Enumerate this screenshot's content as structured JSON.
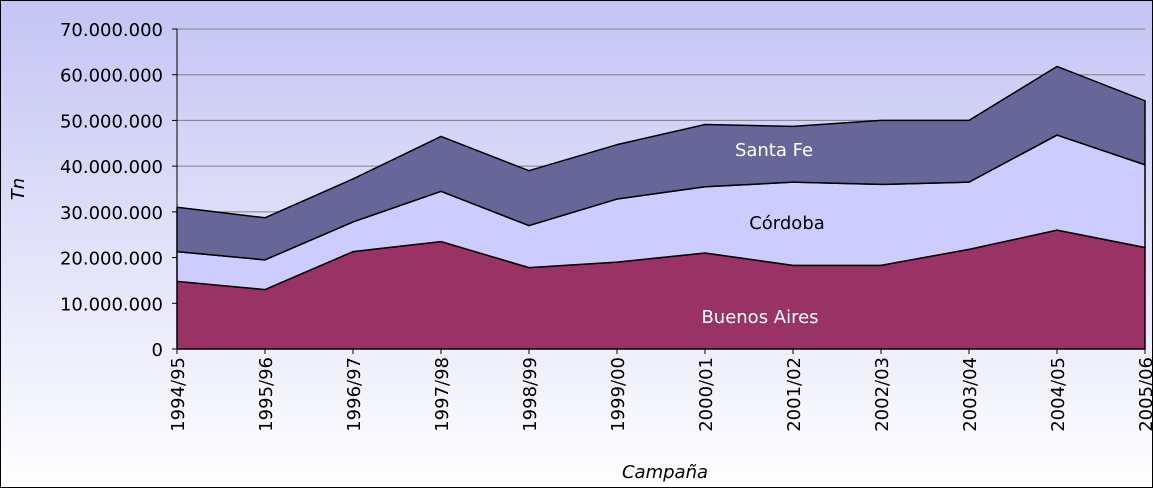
{
  "chart_data": {
    "type": "stacked_area",
    "x_label": "Campaña",
    "y_label": "Tn",
    "categories": [
      "1994/95",
      "1995/96",
      "1996/97",
      "1997/98",
      "1998/99",
      "1999/00",
      "2000/01",
      "2001/02",
      "2002/03",
      "2003/04",
      "2004/05",
      "2005/06"
    ],
    "series": [
      {
        "name": "Buenos Aires",
        "color": "#993366",
        "values": [
          14800000,
          13000000,
          21300000,
          23500000,
          17800000,
          19000000,
          21000000,
          18300000,
          18300000,
          21800000,
          26000000,
          22200000
        ]
      },
      {
        "name": "Córdoba",
        "color": "#ccccff",
        "values": [
          6500000,
          6500000,
          6500000,
          11000000,
          9200000,
          13800000,
          14500000,
          18200000,
          17700000,
          14700000,
          20800000,
          18100000
        ]
      },
      {
        "name": "Santa Fe",
        "color": "#666699",
        "values": [
          9700000,
          9200000,
          9400000,
          12000000,
          12000000,
          11900000,
          13600000,
          12200000,
          14000000,
          13500000,
          15000000,
          14000000
        ]
      }
    ],
    "ylim": [
      0,
      70000000
    ],
    "yticks": [
      0,
      {
        "value": 10000000,
        "label": "10.000.000"
      },
      {
        "value": 20000000,
        "label": "20.000.000"
      },
      {
        "value": 30000000,
        "label": "30.000.000"
      },
      {
        "value": 40000000,
        "label": "40.000.000"
      },
      {
        "value": 50000000,
        "label": "50.000.000"
      },
      {
        "value": 60000000,
        "label": "60.000.000"
      },
      {
        "value": 70000000,
        "label": "70.000.000"
      }
    ],
    "grid": true
  }
}
